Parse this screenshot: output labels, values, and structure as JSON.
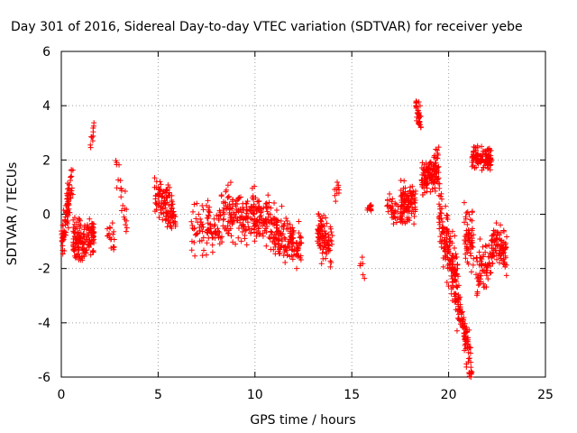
{
  "chart_data": {
    "type": "scatter",
    "title": "Day 301 of 2016, Sidereal Day-to-day VTEC variation (SDTVAR) for receiver yebe",
    "xlabel": "GPS time / hours",
    "ylabel": "SDTVAR / TECUs",
    "xlim": [
      0,
      25
    ],
    "ylim": [
      -6,
      6
    ],
    "xticks": [
      "0",
      "5",
      "10",
      "15",
      "20",
      "25"
    ],
    "yticks": [
      "-6",
      "-4",
      "-2",
      "0",
      "2",
      "4",
      "6"
    ],
    "grid": true,
    "marker": "+",
    "marker_color": "#ff0000",
    "series": [
      {
        "name": "SDTVAR",
        "clusters": [
          {
            "x0": 0.0,
            "x1": 0.6,
            "y0": -1.2,
            "y1": 1.5,
            "sd": 0.5,
            "n": 90
          },
          {
            "x0": 0.6,
            "x1": 1.7,
            "y0": -1.0,
            "y1": -0.8,
            "sd": 0.55,
            "n": 160
          },
          {
            "x0": 1.5,
            "x1": 1.7,
            "y0": 2.6,
            "y1": 3.3,
            "sd": 0.25,
            "n": 10
          },
          {
            "x0": 2.3,
            "x1": 2.8,
            "y0": -0.6,
            "y1": -1.0,
            "sd": 0.4,
            "n": 18
          },
          {
            "x0": 2.8,
            "x1": 3.4,
            "y0": 1.6,
            "y1": -0.3,
            "sd": 0.5,
            "n": 22
          },
          {
            "x0": 4.8,
            "x1": 5.9,
            "y0": 0.8,
            "y1": -0.1,
            "sd": 0.55,
            "n": 120
          },
          {
            "x0": 6.7,
            "x1": 8.2,
            "y0": -0.4,
            "y1": -0.5,
            "sd": 0.6,
            "n": 90
          },
          {
            "x0": 8.2,
            "x1": 10.8,
            "y0": 0.1,
            "y1": -0.2,
            "sd": 0.65,
            "n": 230
          },
          {
            "x0": 10.8,
            "x1": 12.4,
            "y0": -0.6,
            "y1": -1.2,
            "sd": 0.6,
            "n": 150
          },
          {
            "x0": 13.2,
            "x1": 14.0,
            "y0": -0.6,
            "y1": -1.3,
            "sd": 0.6,
            "n": 90
          },
          {
            "x0": 14.1,
            "x1": 14.4,
            "y0": 1.0,
            "y1": 0.9,
            "sd": 0.3,
            "n": 10
          },
          {
            "x0": 15.4,
            "x1": 15.7,
            "y0": -1.8,
            "y1": -2.1,
            "sd": 0.3,
            "n": 6
          },
          {
            "x0": 15.8,
            "x1": 16.0,
            "y0": 0.3,
            "y1": 0.2,
            "sd": 0.12,
            "n": 14
          },
          {
            "x0": 16.8,
            "x1": 17.4,
            "y0": 0.3,
            "y1": 0.1,
            "sd": 0.3,
            "n": 35
          },
          {
            "x0": 17.5,
            "x1": 18.3,
            "y0": 0.3,
            "y1": 0.6,
            "sd": 0.55,
            "n": 110
          },
          {
            "x0": 18.3,
            "x1": 18.6,
            "y0": 4.0,
            "y1": 3.2,
            "sd": 0.3,
            "n": 35
          },
          {
            "x0": 18.6,
            "x1": 19.5,
            "y0": 1.2,
            "y1": 1.8,
            "sd": 0.5,
            "n": 130
          },
          {
            "x0": 19.5,
            "x1": 20.5,
            "y0": 0.0,
            "y1": -2.8,
            "sd": 0.8,
            "n": 170
          },
          {
            "x0": 20.5,
            "x1": 21.2,
            "y0": -3.2,
            "y1": -5.8,
            "sd": 0.5,
            "n": 90
          },
          {
            "x0": 20.8,
            "x1": 21.3,
            "y0": -0.8,
            "y1": -1.0,
            "sd": 0.7,
            "n": 60
          },
          {
            "x0": 21.2,
            "x1": 22.2,
            "y0": 2.2,
            "y1": 2.0,
            "sd": 0.3,
            "n": 120
          },
          {
            "x0": 21.4,
            "x1": 22.3,
            "y0": -2.2,
            "y1": -1.5,
            "sd": 0.6,
            "n": 70
          },
          {
            "x0": 22.2,
            "x1": 23.0,
            "y0": -0.8,
            "y1": -1.5,
            "sd": 0.6,
            "n": 80
          }
        ]
      }
    ]
  }
}
